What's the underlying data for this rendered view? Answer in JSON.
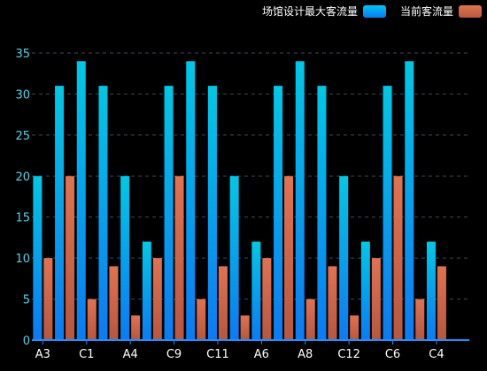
{
  "legend": {
    "items": [
      {
        "label": "场馆设计最大客流量"
      },
      {
        "label": "当前客流量"
      }
    ]
  },
  "colors": {
    "series0_top": "#00c8e6",
    "series0_bottom": "#0a7bf5",
    "series1_top": "#e2724f",
    "series1_bottom": "#b8563f",
    "axis": "#1e90ff",
    "grid": "#3a4a5a",
    "tick_text": "#4fd6e6",
    "category_text": "#ffffff"
  },
  "chart_data": {
    "type": "bar",
    "title": "",
    "xlabel": "",
    "ylabel": "",
    "ylim": [
      0,
      35
    ],
    "yticks": [
      0,
      5,
      10,
      15,
      20,
      25,
      30,
      35
    ],
    "grid": true,
    "legend_position": "top-right",
    "categories": [
      "A3",
      "",
      "C1",
      "",
      "A4",
      "",
      "C9",
      "",
      "C11",
      "",
      "A6",
      "",
      "A8",
      "",
      "C12",
      "",
      "C6",
      "",
      "C4",
      ""
    ],
    "series": [
      {
        "name": "场馆设计最大客流量",
        "values": [
          20,
          31,
          34,
          31,
          20,
          12,
          31,
          34,
          31,
          20,
          12,
          31,
          34,
          31,
          20,
          12,
          31,
          34,
          12,
          0
        ]
      },
      {
        "name": "当前客流量",
        "values": [
          10,
          20,
          5,
          9,
          3,
          10,
          20,
          5,
          9,
          3,
          10,
          20,
          5,
          9,
          3,
          10,
          20,
          5,
          9,
          0
        ]
      }
    ]
  }
}
